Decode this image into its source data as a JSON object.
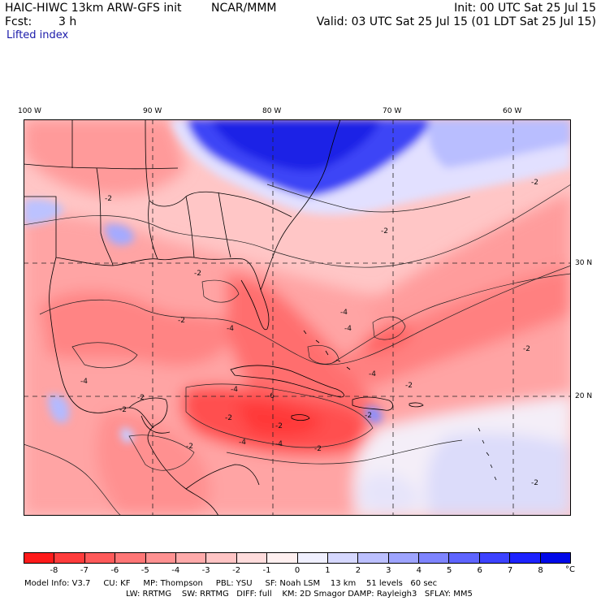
{
  "header": {
    "model": "HAIC-HIWC 13km ARW-GFS init",
    "org": "NCAR/MMM",
    "init": "Init: 00 UTC Sat 25 Jul 15",
    "fcst_label": "Fcst:",
    "fcst_value": "3 h",
    "valid": "Valid: 03 UTC Sat 25 Jul 15 (01 LDT Sat 25 Jul 15)",
    "field": "Lifted index"
  },
  "map": {
    "lon_labels": [
      "100 W",
      "90 W",
      "80 W",
      "70 W",
      "60 W"
    ],
    "lat_labels": [
      "30 N",
      "20 N"
    ],
    "contour_labels": [
      "-2",
      "-2",
      "-2",
      "-4",
      "-4",
      "-4",
      "-2",
      "-2",
      "-2",
      "-2",
      "-4",
      "-6",
      "-4",
      "-2",
      "-4",
      "-2",
      "-2",
      "-2",
      "-4",
      "-2",
      "-2",
      "-2",
      "-4",
      "-2"
    ]
  },
  "colorbar": {
    "colors": [
      "#ff1a1a",
      "#ff3c3c",
      "#ff5a5a",
      "#ff7676",
      "#ff9191",
      "#ffaaaa",
      "#ffc4c4",
      "#ffdcdc",
      "#fff0f0",
      "#f0f0ff",
      "#d6d8ff",
      "#bcc0ff",
      "#9ea4ff",
      "#7e84ff",
      "#5e64ff",
      "#3c42ff",
      "#1c22ff",
      "#0008e8"
    ],
    "tick_labels": [
      "-8",
      "-7",
      "-6",
      "-5",
      "-4",
      "-3",
      "-2",
      "-1",
      "0",
      "1",
      "2",
      "3",
      "4",
      "5",
      "6",
      "7",
      "8"
    ],
    "unit": "°C"
  },
  "footer": {
    "line1": "Model Info: V3.7     CU: KF     MP: Thompson     PBL: YSU     SF: Noah LSM    13 km    51 levels   60 sec",
    "line2": "LW: RRTMG    SW: RRTMG   DIFF: full    KM: 2D Smagor DAMP: Rayleigh3   SFLAY: MM5"
  }
}
